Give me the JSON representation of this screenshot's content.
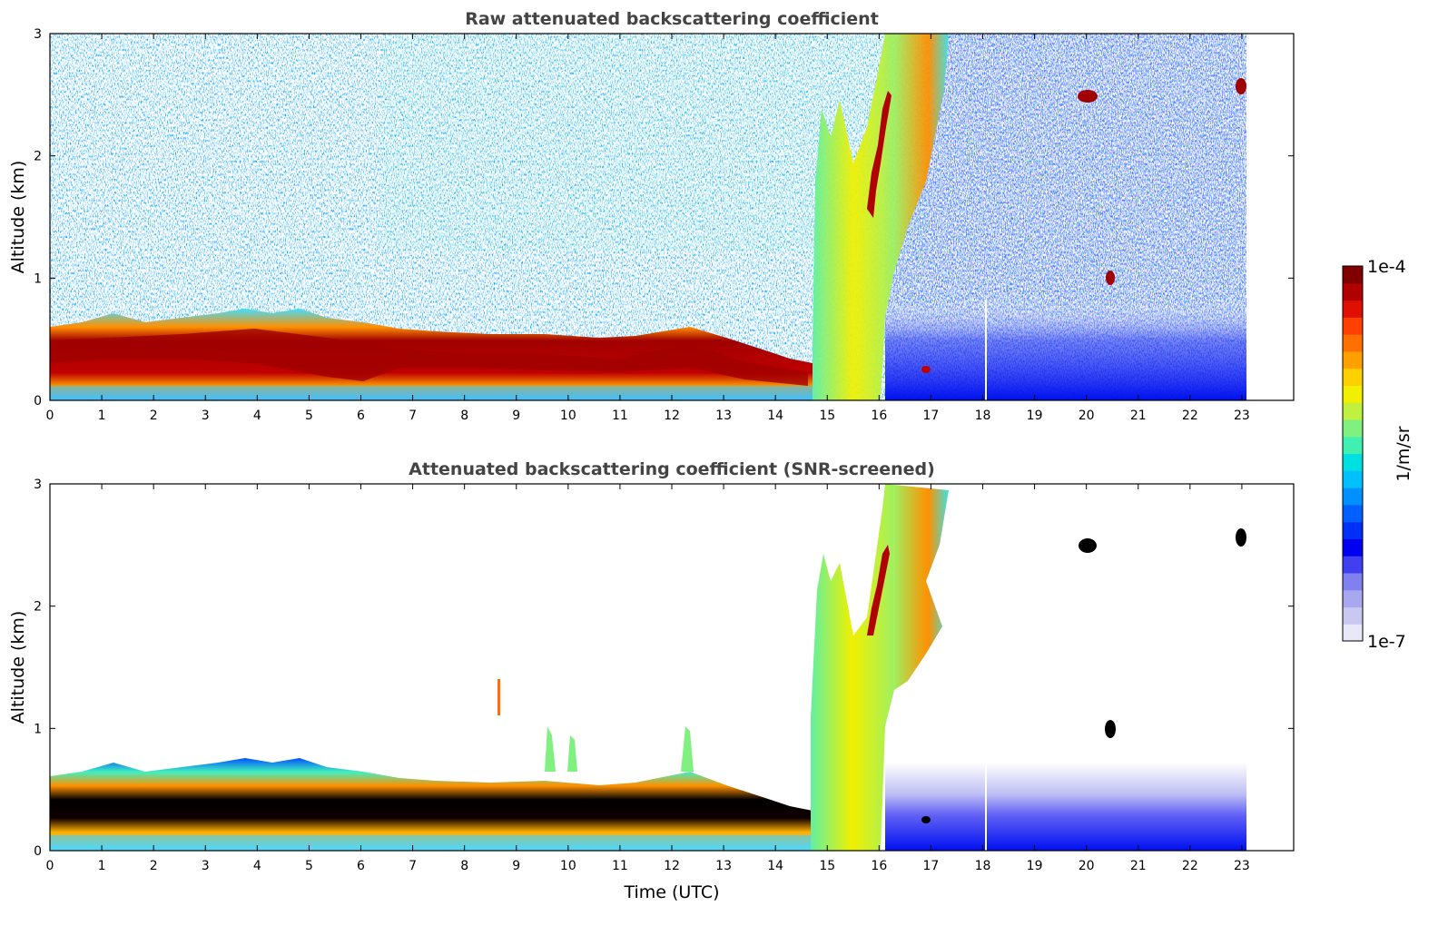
{
  "chart_data": [
    {
      "type": "heatmap",
      "title": "Raw attenuated backscattering coefficient",
      "xlabel": "",
      "ylabel": "Altitude (km)",
      "xlim": [
        0,
        24
      ],
      "ylim": [
        0,
        3
      ],
      "xticks": [
        "0",
        "1",
        "2",
        "3",
        "4",
        "5",
        "6",
        "7",
        "8",
        "9",
        "10",
        "11",
        "12",
        "13",
        "14",
        "15",
        "16",
        "17",
        "18",
        "19",
        "20",
        "21",
        "22",
        "23"
      ],
      "yticks": [
        "0",
        "1",
        "2",
        "3"
      ],
      "data_extent_hours": [
        0,
        23.05
      ],
      "features": [
        {
          "desc": "boundary layer",
          "time": [
            0,
            14.8
          ],
          "altitude_km": [
            0.1,
            0.6
          ],
          "level": "high"
        },
        {
          "desc": "cloud/precipitation plume",
          "time": [
            14.7,
            16.2
          ],
          "altitude_km": [
            0,
            3
          ],
          "level": "medium-high"
        },
        {
          "desc": "elevated layer",
          "time": [
            15.9,
            16.3
          ],
          "altitude_km": [
            1.5,
            2.4
          ],
          "level": "high"
        },
        {
          "desc": "cloud",
          "time": [
            20.0,
            20.2
          ],
          "altitude_km": [
            2.4,
            2.55
          ],
          "level": "high"
        },
        {
          "desc": "cloud",
          "time": [
            20.45,
            20.5
          ],
          "altitude_km": [
            0.95,
            1.05
          ],
          "level": "high"
        },
        {
          "desc": "cloud",
          "time": [
            22.9,
            23.05
          ],
          "altitude_km": [
            2.5,
            2.65
          ],
          "level": "high"
        },
        {
          "desc": "cloud",
          "time": [
            16.85,
            16.9
          ],
          "altitude_km": [
            0.2,
            0.3
          ],
          "level": "high"
        }
      ]
    },
    {
      "type": "heatmap",
      "title": "Attenuated backscattering coefficient (SNR-screened)",
      "xlabel": "Time (UTC)",
      "ylabel": "Altitude (km)",
      "xlim": [
        0,
        24
      ],
      "ylim": [
        0,
        3
      ],
      "xticks": [
        "0",
        "1",
        "2",
        "3",
        "4",
        "5",
        "6",
        "7",
        "8",
        "9",
        "10",
        "11",
        "12",
        "13",
        "14",
        "15",
        "16",
        "17",
        "18",
        "19",
        "20",
        "21",
        "22",
        "23"
      ],
      "yticks": [
        "0",
        "1",
        "2",
        "3"
      ],
      "data_extent_hours": [
        0,
        23.05
      ],
      "features": [
        {
          "desc": "boundary layer",
          "time": [
            0,
            14.8
          ],
          "altitude_km": [
            0.1,
            0.6
          ],
          "level": "high"
        },
        {
          "desc": "cloud/precipitation plume",
          "time": [
            14.7,
            16.2
          ],
          "altitude_km": [
            0,
            2.5
          ],
          "level": "medium-high"
        },
        {
          "desc": "upper plume",
          "time": [
            16.0,
            17.4
          ],
          "altitude_km": [
            1.4,
            3
          ],
          "level": "medium"
        },
        {
          "desc": "night boundary layer",
          "time": [
            16.0,
            23.05
          ],
          "altitude_km": [
            0,
            0.6
          ],
          "level": "low"
        },
        {
          "desc": "cloud",
          "time": [
            19.95,
            20.2
          ],
          "altitude_km": [
            2.4,
            2.55
          ],
          "level": "saturated"
        },
        {
          "desc": "cloud",
          "time": [
            20.4,
            20.55
          ],
          "altitude_km": [
            0.95,
            1.05
          ],
          "level": "saturated"
        },
        {
          "desc": "cloud",
          "time": [
            22.9,
            23.05
          ],
          "altitude_km": [
            2.5,
            2.65
          ],
          "level": "saturated"
        }
      ]
    }
  ],
  "colorbar": {
    "label": "1/m/sr",
    "max_label": "1e-4",
    "min_label": "1e-7",
    "colors": [
      "#e8e8f8",
      "#c8c8f0",
      "#a8a8f0",
      "#8080f0",
      "#4040f0",
      "#0000f0",
      "#0030f8",
      "#0060ff",
      "#0090ff",
      "#00c0ff",
      "#00e0e0",
      "#40f0b0",
      "#80f080",
      "#c0f040",
      "#f0f000",
      "#ffd000",
      "#ffa000",
      "#ff7000",
      "#ff4000",
      "#e01000",
      "#b00000",
      "#800000"
    ]
  }
}
